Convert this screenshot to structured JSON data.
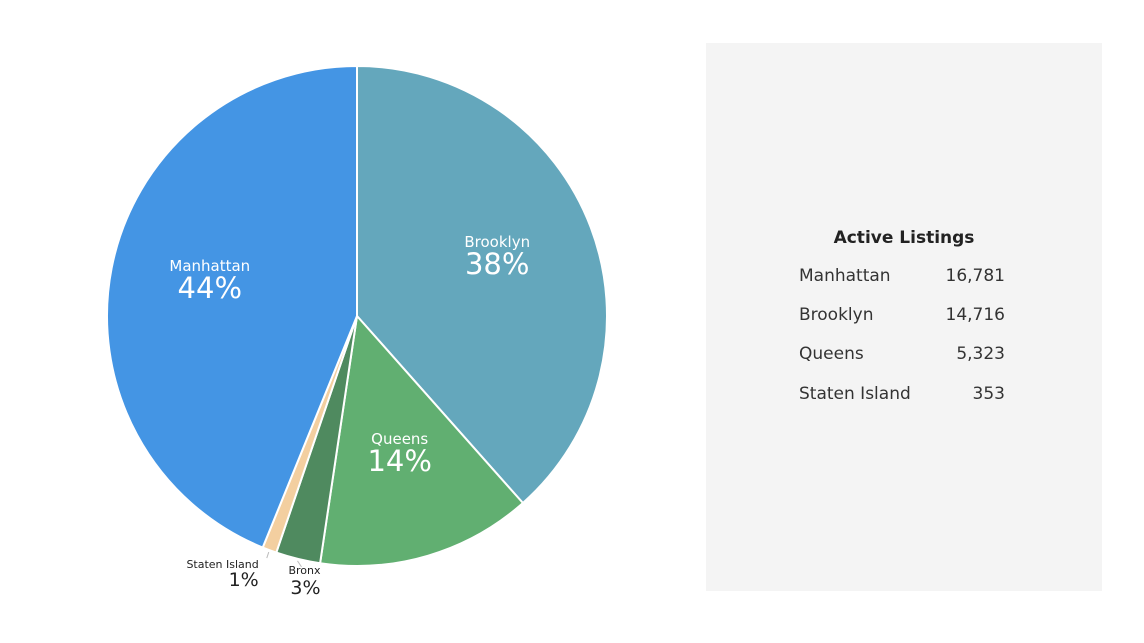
{
  "chart_data": {
    "type": "pie",
    "slices": [
      {
        "label": "Brooklyn",
        "percent_label": "38%",
        "value": 14716,
        "color": "#64a7bc",
        "label_color": "#ffffff"
      },
      {
        "label": "Queens",
        "percent_label": "14%",
        "value": 5323,
        "color": "#61af71",
        "label_color": "#ffffff"
      },
      {
        "label": "Bronx",
        "percent_label": "3%",
        "value": 1100,
        "color": "#4f8a5f",
        "label_color": "#222222"
      },
      {
        "label": "Staten Island",
        "percent_label": "1%",
        "value": 353,
        "color": "#f3cfa0",
        "label_color": "#222222"
      },
      {
        "label": "Manhattan",
        "percent_label": "44%",
        "value": 16781,
        "color": "#4495e4",
        "label_color": "#ffffff"
      }
    ]
  },
  "panel": {
    "title": "Active Listings",
    "rows": [
      {
        "name": "Manhattan",
        "value": "16,781"
      },
      {
        "name": "Brooklyn",
        "value": "14,716"
      },
      {
        "name": "Queens",
        "value": "5,323"
      },
      {
        "name": "Staten Island",
        "value": "353"
      }
    ]
  }
}
